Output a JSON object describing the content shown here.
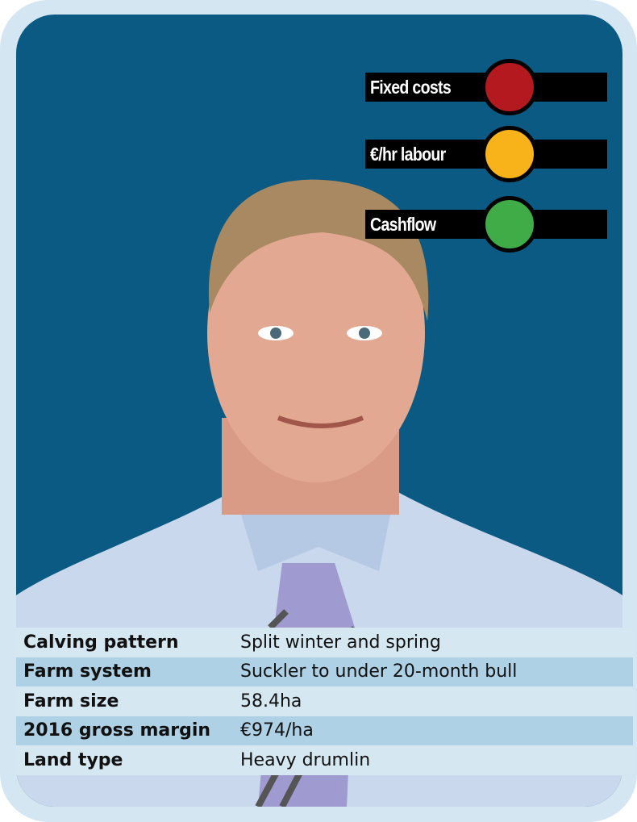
{
  "indicators": [
    {
      "label": "Fixed costs",
      "status": "red",
      "color": "#b3191e"
    },
    {
      "label": "€/hr labour",
      "status": "amber",
      "color": "#f8b31b"
    },
    {
      "label": "Cashflow",
      "status": "green",
      "color": "#3fac48"
    }
  ],
  "profile": [
    {
      "label": "Calving pattern",
      "value": "Split winter and spring"
    },
    {
      "label": "Farm system",
      "value": "Suckler to under 20-month bull"
    },
    {
      "label": "Farm size",
      "value": "58.4ha"
    },
    {
      "label": "2016 gross margin",
      "value": "€974/ha"
    },
    {
      "label": "Land type",
      "value": "Heavy drumlin"
    }
  ],
  "colors": {
    "panel": "#0b5a83",
    "card": "#d3e6f1"
  }
}
